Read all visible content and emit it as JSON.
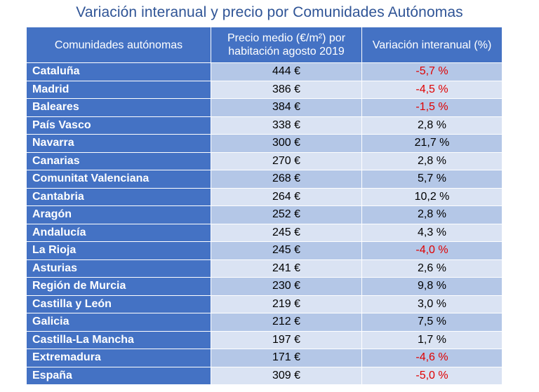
{
  "chart_data": {
    "type": "table",
    "title": "Variación interanual y precio por Comunidades Autónomas",
    "columns": [
      "Comunidades autónomas",
      "Precio medio (€/m²) por habitación agosto 2019",
      "Variación interanual (%)"
    ],
    "rows": [
      {
        "region": "Cataluña",
        "price": "444 €",
        "change": "-5,7 %",
        "change_value": -5.7
      },
      {
        "region": "Madrid",
        "price": "386 €",
        "change": "-4,5 %",
        "change_value": -4.5
      },
      {
        "region": "Baleares",
        "price": "384 €",
        "change": "-1,5 %",
        "change_value": -1.5
      },
      {
        "region": "País Vasco",
        "price": "338 €",
        "change": "2,8 %",
        "change_value": 2.8
      },
      {
        "region": "Navarra",
        "price": "300 €",
        "change": "21,7 %",
        "change_value": 21.7
      },
      {
        "region": "Canarias",
        "price": "270 €",
        "change": "2,8 %",
        "change_value": 2.8
      },
      {
        "region": "Comunitat Valenciana",
        "price": "268 €",
        "change": "5,7 %",
        "change_value": 5.7
      },
      {
        "region": "Cantabria",
        "price": "264 €",
        "change": "10,2 %",
        "change_value": 10.2
      },
      {
        "region": "Aragón",
        "price": "252 €",
        "change": "2,8 %",
        "change_value": 2.8
      },
      {
        "region": "Andalucía",
        "price": "245 €",
        "change": "4,3 %",
        "change_value": 4.3
      },
      {
        "region": "La Rioja",
        "price": "245 €",
        "change": "-4,0 %",
        "change_value": -4.0
      },
      {
        "region": "Asturias",
        "price": "241 €",
        "change": "2,6 %",
        "change_value": 2.6
      },
      {
        "region": "Región de Murcia",
        "price": "230 €",
        "change": "9,8 %",
        "change_value": 9.8
      },
      {
        "region": "Castilla y León",
        "price": "219 €",
        "change": "3,0 %",
        "change_value": 3.0
      },
      {
        "region": "Galicia",
        "price": "212 €",
        "change": "7,5 %",
        "change_value": 7.5
      },
      {
        "region": "Castilla-La Mancha",
        "price": "197 €",
        "change": "1,7 %",
        "change_value": 1.7
      },
      {
        "region": "Extremadura",
        "price": "171 €",
        "change": "-4,6 %",
        "change_value": -4.6
      },
      {
        "region": "España",
        "price": "309 €",
        "change": "-5,0 %",
        "change_value": -5.0
      }
    ],
    "colors": {
      "header_bg": "#4472c4",
      "row_odd_bg": "#b4c7e7",
      "row_even_bg": "#dae3f3",
      "negative_text": "#e00000",
      "title_text": "#2f5496"
    }
  }
}
